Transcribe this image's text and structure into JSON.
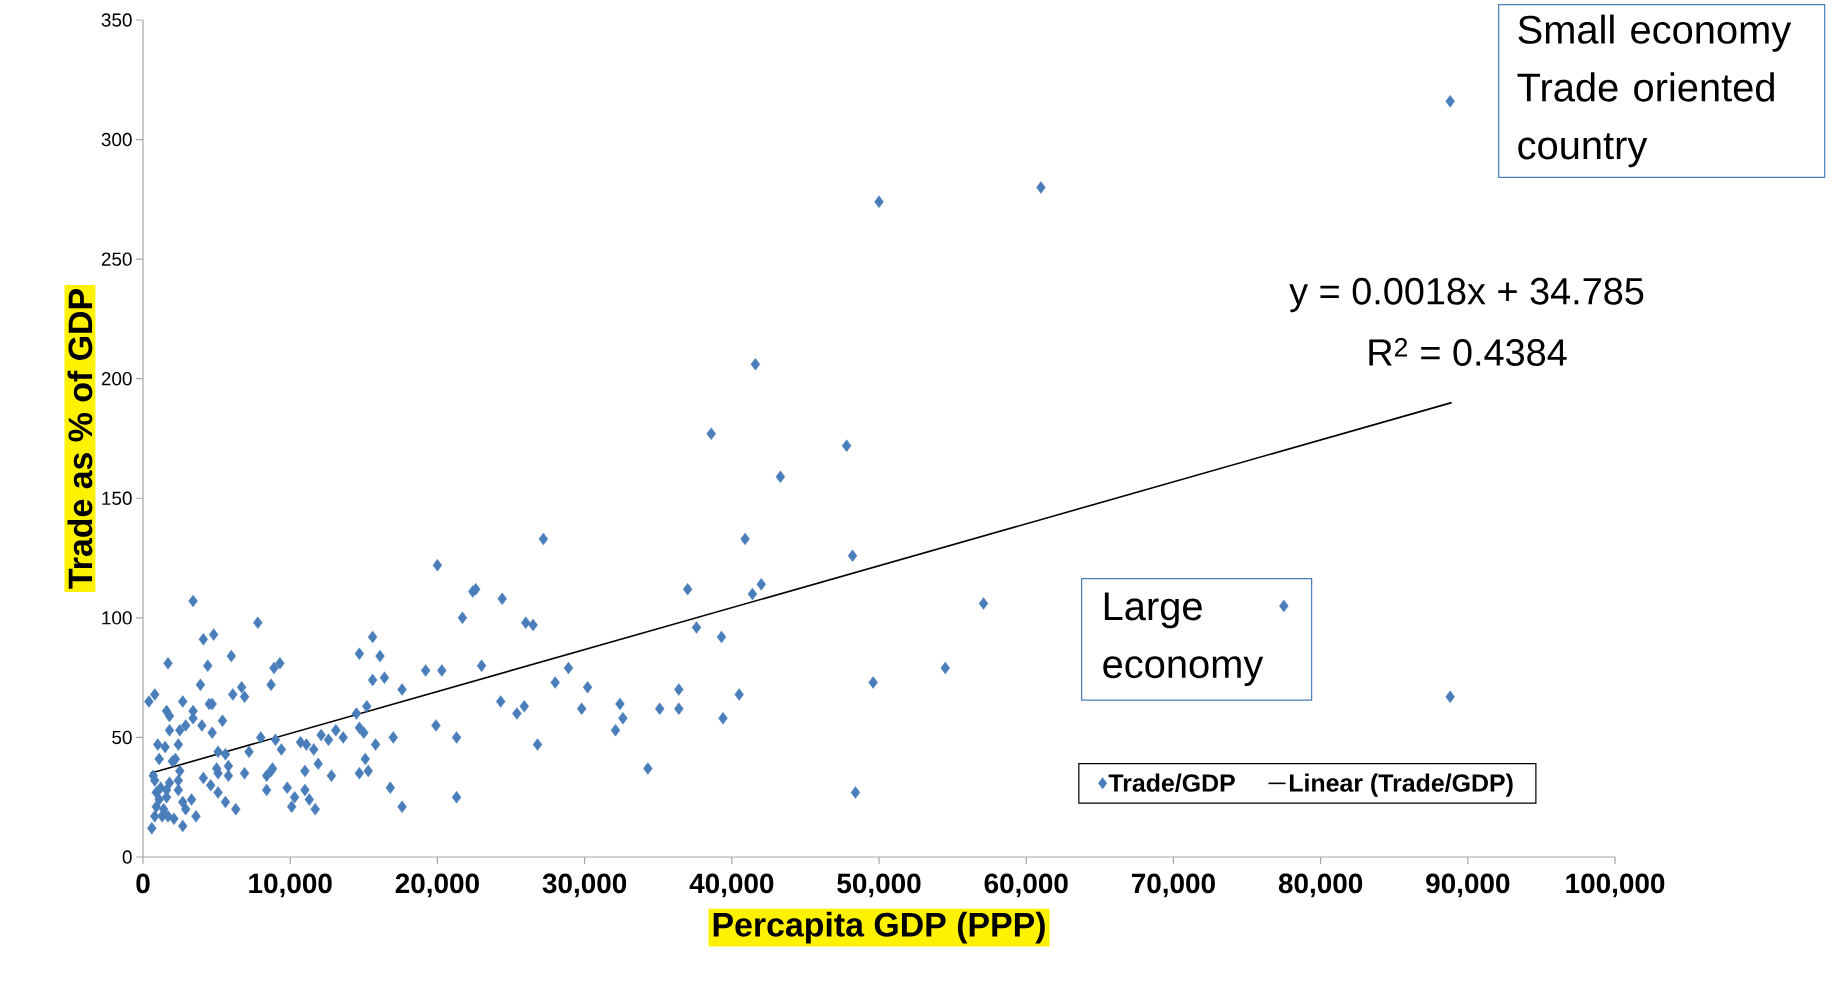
{
  "chart_data": {
    "type": "scatter",
    "xlabel": "Percapita GDP (PPP)",
    "ylabel": "Trade as % of GDP",
    "xlim": [
      0,
      100000
    ],
    "ylim": [
      0,
      350
    ],
    "xticks": [
      {
        "value": 0,
        "label": "0"
      },
      {
        "value": 10000,
        "label": "10,000"
      },
      {
        "value": 20000,
        "label": "20,000"
      },
      {
        "value": 30000,
        "label": "30,000"
      },
      {
        "value": 40000,
        "label": "40,000"
      },
      {
        "value": 50000,
        "label": "50,000"
      },
      {
        "value": 60000,
        "label": "60,000"
      },
      {
        "value": 70000,
        "label": "70,000"
      },
      {
        "value": 80000,
        "label": "80,000"
      },
      {
        "value": 90000,
        "label": "90,000"
      },
      {
        "value": 100000,
        "label": "100,000"
      }
    ],
    "yticks": [
      0,
      50,
      100,
      150,
      200,
      250,
      300,
      350
    ],
    "legend": "bottom right",
    "marker": "diamond",
    "annotations": [
      "y = 0.0018x + 34.785",
      "R$^{2}$ = 0.4384",
      "Large economy",
      "Small economy Trade oriented country"
    ],
    "series": [
      {
        "name": "Trade/GDP",
        "color": "#4a7ebb",
        "x": [
          88800,
          61000,
          50000,
          41600,
          38600,
          47800,
          43300,
          40900,
          27200,
          20000,
          48200,
          42000,
          41400,
          37000,
          37600,
          39300,
          57100,
          77500,
          88800,
          54500,
          49600,
          40500,
          36400,
          36400,
          35100,
          39400,
          34300,
          48400,
          32600,
          32400,
          32100,
          29800,
          30200,
          28900,
          28000,
          26800,
          25900,
          25400,
          26000,
          26500,
          24400,
          24300,
          22600,
          22400,
          23000,
          21700,
          21300,
          20300,
          19200,
          19900,
          21300,
          17600,
          17600,
          17000,
          16800,
          16400,
          16100,
          15600,
          15600,
          15800,
          15200,
          14700,
          14500,
          15000,
          14700,
          15100,
          14700,
          15300,
          3400,
          7800,
          4100,
          4800,
          1700,
          4400,
          6000,
          3900,
          8900,
          9300,
          8700,
          6700,
          6100,
          6900,
          400,
          800,
          2700,
          4500,
          4700,
          1600,
          1800,
          3400,
          3400,
          4000,
          5400,
          4700,
          1800,
          2500,
          2900,
          8000,
          9000,
          9400,
          7200,
          5100,
          5600,
          1000,
          1500,
          2400,
          1100,
          2200,
          2000,
          2500,
          5000,
          5100,
          5800,
          5800,
          6900,
          4100,
          8400,
          8700,
          8800,
          8400,
          4600,
          5100,
          5600,
          6300,
          3600,
          2700,
          600,
          3300,
          2700,
          2900,
          2400,
          2400,
          800,
          1200,
          900,
          1600,
          1800,
          900,
          1400,
          1300,
          800,
          1700,
          2100,
          1600,
          1100,
          1400,
          700,
          9800,
          10300,
          10100,
          11000,
          11900,
          11000,
          11300,
          11700,
          12800,
          10700,
          11100,
          11600,
          12100,
          12600,
          13100,
          13600
        ],
        "values": [
          316,
          280,
          274,
          206,
          177,
          172,
          159,
          133,
          133,
          122,
          126,
          114,
          110,
          112,
          96,
          92,
          106,
          105,
          67,
          79,
          73,
          68,
          70,
          62,
          62,
          58,
          37,
          27,
          58,
          64,
          53,
          62,
          71,
          79,
          73,
          47,
          63,
          60,
          98,
          97,
          108,
          65,
          112,
          111,
          80,
          100,
          50,
          78,
          78,
          55,
          25,
          70,
          21,
          50,
          29,
          75,
          84,
          92,
          74,
          47,
          63,
          85,
          60,
          52,
          54,
          41,
          35,
          36,
          107,
          98,
          91,
          93,
          81,
          80,
          84,
          72,
          79,
          81,
          72,
          71,
          68,
          67,
          65,
          68,
          65,
          64,
          64,
          61,
          59,
          61,
          58,
          55,
          57,
          52,
          53,
          53,
          55,
          50,
          49,
          45,
          44,
          44,
          43,
          47,
          46,
          47,
          41,
          41,
          40,
          36,
          37,
          35,
          38,
          34,
          35,
          33,
          34,
          36,
          37,
          28,
          30,
          27,
          23,
          20,
          17,
          13,
          12,
          24,
          23,
          20,
          28,
          32,
          32,
          29,
          27,
          28,
          31,
          21,
          20,
          17,
          17,
          17,
          16,
          25,
          24,
          18,
          34,
          29,
          25,
          21,
          36,
          39,
          28,
          24,
          20,
          34,
          48,
          47,
          45,
          51,
          49,
          53,
          50
        ]
      },
      {
        "name": "Linear (Trade/GDP)",
        "type": "line",
        "color": "#000000",
        "marker": "none",
        "x": [
          500,
          88900
        ],
        "values": [
          35,
          190
        ]
      }
    ]
  }
}
